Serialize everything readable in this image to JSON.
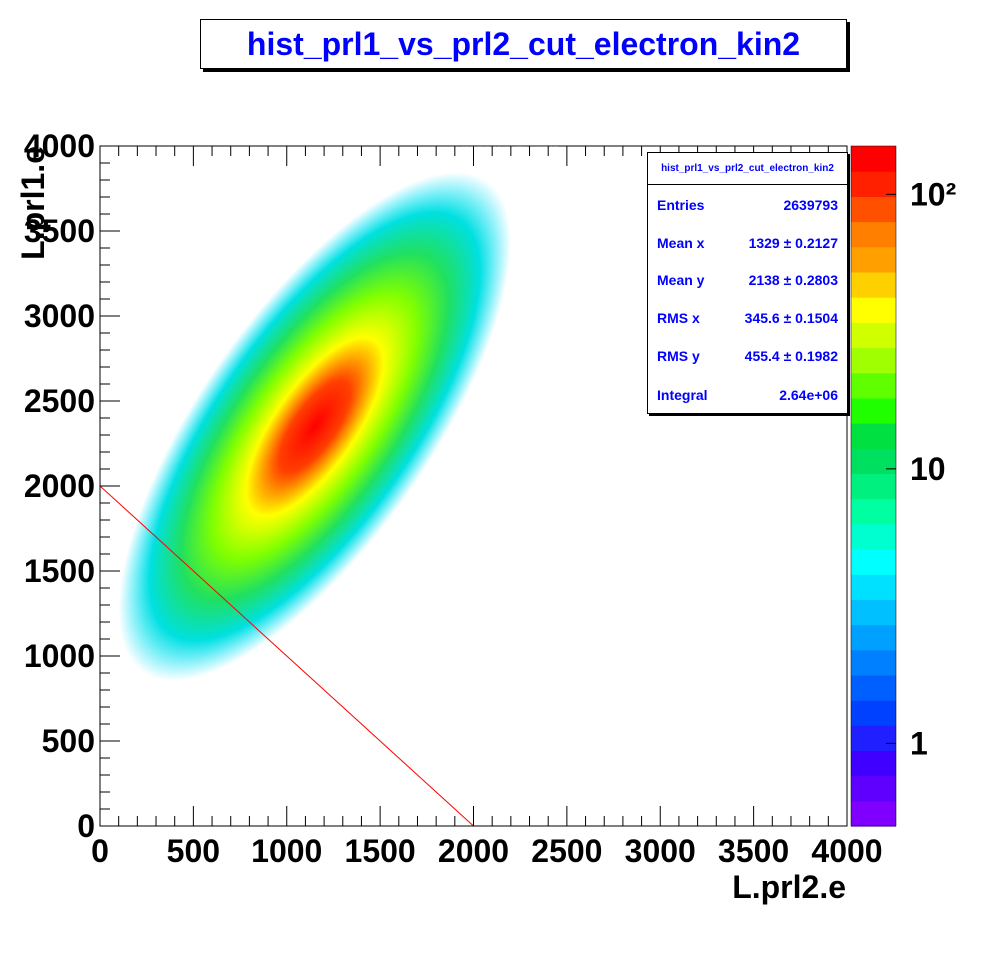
{
  "chart_data": {
    "type": "heatmap",
    "title": "hist_prl1_vs_prl2_cut_electron_kin2",
    "xlabel": "L.prl2.e",
    "ylabel": "L.prl1.e",
    "xlim": [
      0,
      4000
    ],
    "ylim": [
      0,
      4000
    ],
    "x_ticks": [
      "0",
      "500",
      "1000",
      "1500",
      "2000",
      "2500",
      "3000",
      "3500",
      "4000"
    ],
    "y_ticks": [
      "0",
      "500",
      "1000",
      "1500",
      "2000",
      "2500",
      "3000",
      "3500",
      "4000"
    ],
    "colorbar": {
      "scale": "log",
      "labels": [
        "1",
        "10",
        "10²"
      ],
      "zmin": 0.5,
      "zmax": 150
    },
    "peak": {
      "x": 1150,
      "y": 2350
    },
    "cut_line": {
      "x": [
        0,
        2000
      ],
      "y": [
        2000,
        0
      ],
      "color": "#ff0000"
    },
    "stats": {
      "name": "hist_prl1_vs_prl2_cut_electron_kin2",
      "rows": [
        {
          "label": "Entries",
          "value": "2639793"
        },
        {
          "label": "Mean x",
          "value": "1329 ± 0.2127"
        },
        {
          "label": "Mean y",
          "value": "2138 ± 0.2803"
        },
        {
          "label": "RMS x",
          "value": "345.6 ± 0.1504"
        },
        {
          "label": "RMS y",
          "value": "455.4 ± 0.1982"
        },
        {
          "label": "Integral",
          "value": "2.64e+06"
        }
      ]
    },
    "palette": [
      "#7f00ff",
      "#5f00ff",
      "#3f00ff",
      "#1f1fff",
      "#0040ff",
      "#0060ff",
      "#0080ff",
      "#00a0ff",
      "#00c0ff",
      "#00e0ff",
      "#00ffff",
      "#00ffd0",
      "#00ffa0",
      "#00f080",
      "#00e060",
      "#00e040",
      "#20ff00",
      "#60ff00",
      "#a0ff00",
      "#d0ff00",
      "#ffff00",
      "#ffd000",
      "#ffa000",
      "#ff8000",
      "#ff5000",
      "#ff2000",
      "#ff0000"
    ]
  }
}
